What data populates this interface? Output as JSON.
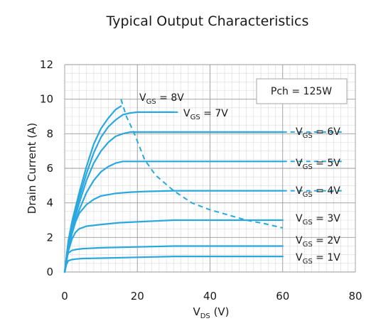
{
  "chart_data": {
    "type": "line",
    "title": "Typical Output Characteristics",
    "xlabel": {
      "main": "V",
      "sub": "DS",
      "unit": " (V)"
    },
    "ylabel": "Drain Current (A)",
    "xlim": [
      0,
      80
    ],
    "ylim": [
      0,
      12
    ],
    "xticks": [
      "0",
      "20",
      "40",
      "60",
      "80"
    ],
    "yticks": [
      "0",
      "2",
      "4",
      "6",
      "8",
      "10",
      "12"
    ],
    "grid": true,
    "line_color": "#29a8e0",
    "annotation_box": "Pch = 125W",
    "power_limit_curve": {
      "label": "Pch = 125W",
      "style": "dashed",
      "x": [
        15.5,
        17,
        19,
        22,
        25,
        30,
        35,
        40,
        45,
        50,
        55,
        60
      ],
      "y": [
        10.0,
        9.0,
        8.1,
        6.5,
        5.6,
        4.7,
        4.0,
        3.6,
        3.3,
        3.0,
        2.8,
        2.55
      ]
    },
    "series": [
      {
        "name": "8V",
        "sub": "GS",
        "label_main": "V",
        "label_val": " = 8V",
        "x": [
          0,
          1,
          2,
          4,
          6,
          8,
          10,
          12,
          14,
          15.5
        ],
        "y": [
          0,
          1.8,
          2.9,
          4.6,
          6.1,
          7.4,
          8.3,
          8.9,
          9.4,
          9.6
        ]
      },
      {
        "name": "7V",
        "sub": "GS",
        "label_main": "V",
        "label_val": " = 7V",
        "x": [
          0,
          1,
          2,
          4,
          6,
          8,
          10,
          12,
          14,
          16,
          18,
          20,
          25,
          30
        ],
        "y": [
          0,
          1.7,
          2.7,
          4.3,
          5.7,
          6.9,
          7.8,
          8.4,
          8.8,
          9.1,
          9.2,
          9.25,
          9.25,
          9.25
        ]
      },
      {
        "name": "6V",
        "sub": "GS",
        "label_main": "V",
        "label_val": " = 6V",
        "x": [
          0,
          1,
          2,
          4,
          6,
          8,
          10,
          12,
          14,
          16,
          18,
          20,
          25,
          30,
          40,
          50,
          60
        ],
        "y": [
          0,
          1.5,
          2.5,
          4.0,
          5.3,
          6.3,
          7.0,
          7.5,
          7.85,
          8.0,
          8.1,
          8.1,
          8.1,
          8.1,
          8.1,
          8.1,
          8.1
        ]
      },
      {
        "name": "5V",
        "sub": "GS",
        "label_main": "V",
        "label_val": " = 5V",
        "x": [
          0,
          1,
          2,
          4,
          6,
          8,
          10,
          12,
          14,
          16,
          18,
          20,
          25,
          30,
          40,
          50,
          60
        ],
        "y": [
          0,
          1.4,
          2.3,
          3.6,
          4.6,
          5.3,
          5.8,
          6.1,
          6.3,
          6.4,
          6.4,
          6.4,
          6.4,
          6.4,
          6.4,
          6.4,
          6.4
        ]
      },
      {
        "name": "4V",
        "sub": "GS",
        "label_main": "V",
        "label_val": " = 4V",
        "x": [
          0,
          1,
          2,
          3,
          4,
          6,
          8,
          10,
          14,
          18,
          22,
          26,
          30,
          40,
          50,
          60
        ],
        "y": [
          0,
          1.3,
          2.2,
          2.9,
          3.4,
          3.9,
          4.2,
          4.4,
          4.55,
          4.62,
          4.66,
          4.68,
          4.7,
          4.7,
          4.7,
          4.7
        ]
      },
      {
        "name": "3V",
        "sub": "GS",
        "label_main": "V",
        "label_val": " = 3V",
        "x": [
          0,
          1,
          2,
          3,
          4,
          6,
          10,
          15,
          20,
          25,
          30,
          40,
          50,
          60
        ],
        "y": [
          0,
          1.2,
          1.9,
          2.3,
          2.5,
          2.65,
          2.75,
          2.85,
          2.9,
          2.95,
          3.0,
          3.0,
          3.0,
          3.0
        ]
      },
      {
        "name": "2V",
        "sub": "GS",
        "label_main": "V",
        "label_val": " = 2V",
        "x": [
          0,
          0.5,
          1,
          2,
          3,
          5,
          10,
          20,
          30,
          40,
          60
        ],
        "y": [
          0,
          0.8,
          1.1,
          1.25,
          1.3,
          1.35,
          1.4,
          1.45,
          1.5,
          1.5,
          1.5
        ]
      },
      {
        "name": "1V",
        "sub": "GS",
        "label_main": "V",
        "label_val": " = 1V",
        "x": [
          0,
          0.5,
          1,
          2,
          3,
          5,
          10,
          20,
          30,
          40,
          60
        ],
        "y": [
          0,
          0.45,
          0.65,
          0.72,
          0.75,
          0.78,
          0.8,
          0.85,
          0.9,
          0.9,
          0.9
        ]
      }
    ]
  }
}
